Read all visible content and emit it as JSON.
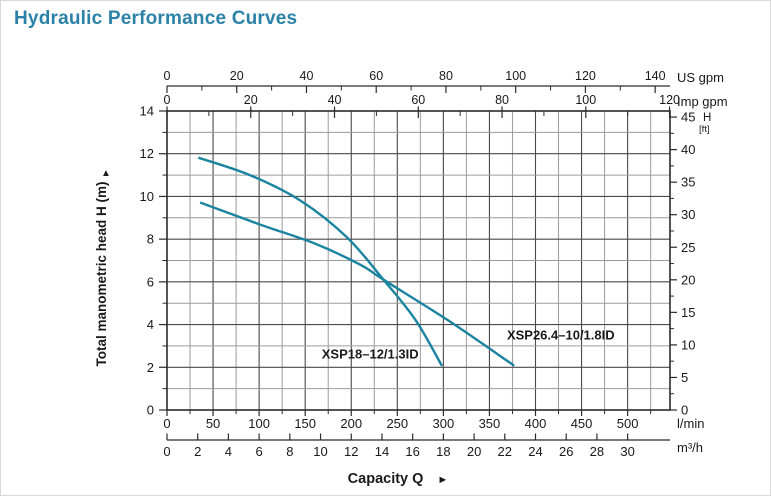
{
  "page": {
    "title": "Hydraulic Performance Curves"
  },
  "colors": {
    "title": "#2b82a8",
    "curve": "#1b84a0",
    "grid_major": "#4a4a4a",
    "grid_minor": "#9c9c9c",
    "axis": "#2b2b2b",
    "text": "#1a1a1a"
  },
  "chart_data": {
    "type": "line",
    "title": "Hydraulic Performance Curves",
    "xlabel": "Capacity Q",
    "xlabel_arrow": "►",
    "ylabel": "Total manometric head H (m)",
    "ylabel_arrow": "▲",
    "x_range_lmin": [
      0,
      546
    ],
    "y_range_m": [
      0,
      14
    ],
    "grid": {
      "x_minor_step_lmin": 25,
      "x_major_every_lmin": 50,
      "y_minor_step_m": 1,
      "y_major_every_m": 2
    },
    "x_axes": {
      "us_gpm": {
        "unit": "US gpm",
        "ticks": [
          0,
          20,
          40,
          60,
          80,
          100,
          120,
          140
        ],
        "minor_step": 10,
        "lmin_per_unit": 3.785
      },
      "imp_gpm": {
        "unit": "Imp gpm",
        "ticks": [
          0,
          20,
          40,
          60,
          80,
          100,
          120
        ],
        "minor_step": 10,
        "lmin_per_unit": 4.546
      },
      "lmin": {
        "unit": "l/min",
        "ticks": [
          0,
          50,
          100,
          150,
          200,
          250,
          300,
          350,
          400,
          450,
          500
        ],
        "minor_step": 25,
        "lmin_per_unit": 1
      },
      "m3h": {
        "unit": "m³/h",
        "ticks": [
          0,
          2,
          4,
          6,
          8,
          10,
          12,
          14,
          16,
          18,
          20,
          22,
          24,
          26,
          28,
          30
        ],
        "lmin_per_unit": 16.6667
      }
    },
    "y_axes": {
      "m": {
        "ticks": [
          0,
          2,
          4,
          6,
          8,
          10,
          12,
          14
        ],
        "minor_step": 1,
        "m_per_unit": 1
      },
      "ft": {
        "label": "H",
        "unit_label": "[ft]",
        "ticks": [
          0,
          5,
          10,
          15,
          20,
          25,
          30,
          35,
          40,
          45
        ],
        "minor_step": 2.5,
        "m_per_unit": 0.3048
      }
    },
    "series": [
      {
        "name": "XSP18–12/1.3ID",
        "points_lmin_m": [
          [
            35,
            11.8
          ],
          [
            90,
            11.0
          ],
          [
            145,
            9.8
          ],
          [
            195,
            8.1
          ],
          [
            235,
            6.1
          ],
          [
            270,
            4.2
          ],
          [
            298,
            2.1
          ]
        ],
        "label_anchor_lmin_m": [
          168,
          2.4
        ]
      },
      {
        "name": "XSP26.4–10/1.8ID",
        "points_lmin_m": [
          [
            37,
            9.7
          ],
          [
            100,
            8.7
          ],
          [
            160,
            7.8
          ],
          [
            210,
            6.8
          ],
          [
            235,
            6.1
          ],
          [
            305,
            4.2
          ],
          [
            376,
            2.1
          ]
        ],
        "label_anchor_lmin_m": [
          369,
          3.3
        ]
      }
    ]
  }
}
